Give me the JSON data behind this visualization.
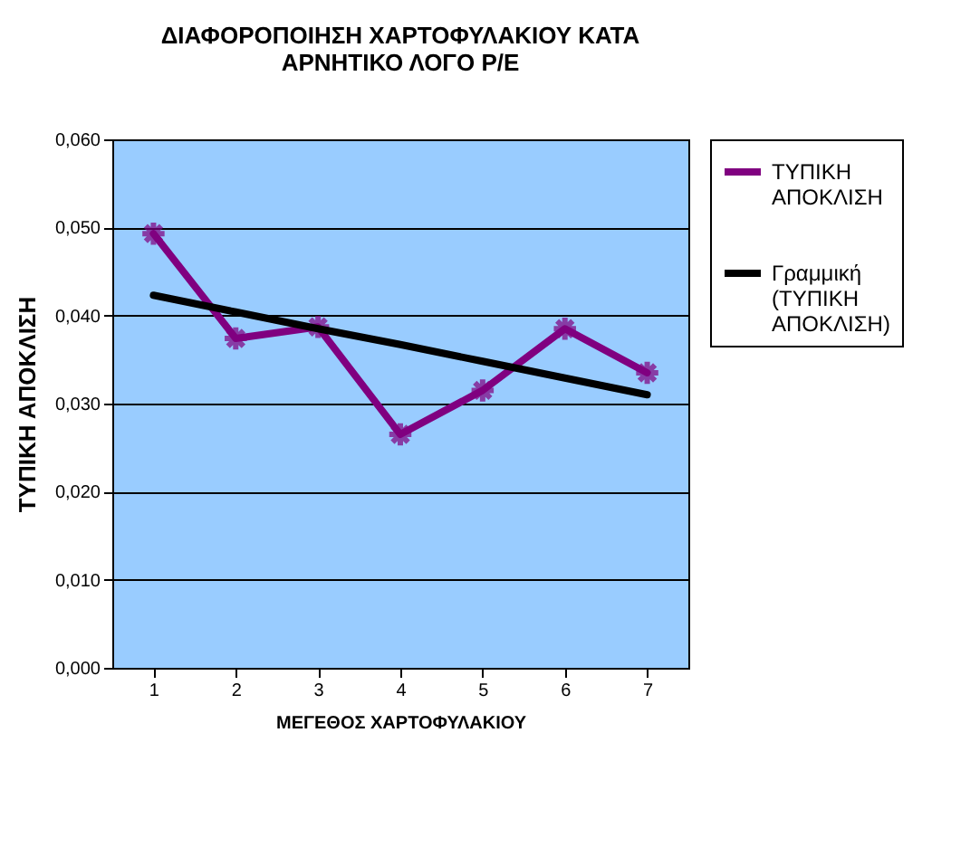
{
  "chart_data": {
    "type": "line",
    "title": [
      "ΔΙΑΦΟΡΟΠΟΙΗΣΗ ΧΑΡΤΟΦΥΛΑΚΙΟΥ ΚΑΤΑ",
      "ΑΡΝΗΤΙΚΟ ΛΟΓΟ Ρ/Ε"
    ],
    "xlabel": "ΜΕΓΕΘΟΣ ΧΑΡΤΟΦΥΛΑΚΙΟΥ",
    "ylabel": "ΤΥΠΙΚΗ ΑΠΟΚΛΙΣΗ",
    "categories": [
      "1",
      "2",
      "3",
      "4",
      "5",
      "6",
      "7"
    ],
    "series": [
      {
        "name": "ΤΥΠΙΚΗ ΑΠΟΚΛΙΣΗ",
        "color": "#800080",
        "marker": "cross",
        "values": [
          0.0493,
          0.0374,
          0.0387,
          0.0265,
          0.0315,
          0.0385,
          0.0335
        ]
      },
      {
        "name": "Γραμμική (ΤΥΠΙΚΗ ΑΠΟΚΛΙΣΗ)",
        "color": "#000000",
        "marker": "none",
        "values": [
          0.0423,
          0.0404,
          0.0385,
          0.0367,
          0.0348,
          0.0329,
          0.031
        ]
      }
    ],
    "ylim": [
      0,
      0.06
    ],
    "yticks": [
      {
        "value": 0,
        "label": "0,000"
      },
      {
        "value": 0.01,
        "label": "0,010"
      },
      {
        "value": 0.02,
        "label": "0,020"
      },
      {
        "value": 0.03,
        "label": "0,030"
      },
      {
        "value": 0.04,
        "label": "0,040"
      },
      {
        "value": 0.05,
        "label": "0,050"
      },
      {
        "value": 0.06,
        "label": "0,060"
      }
    ],
    "grid": "y",
    "legend": "right"
  }
}
